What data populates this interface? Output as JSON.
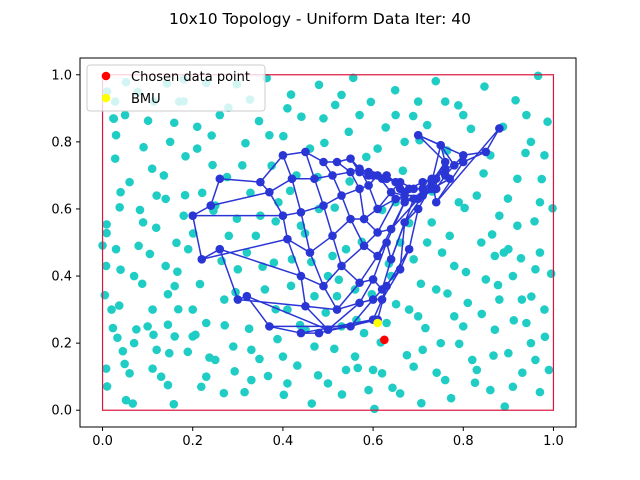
{
  "chart_data": {
    "type": "scatter",
    "title": "10x10 Topology - Uniform Data Iter: 40",
    "xlabel": "",
    "ylabel": "",
    "xlim": [
      -0.05,
      1.05
    ],
    "ylim": [
      -0.05,
      1.05
    ],
    "xticks": [
      "0.0",
      "0.2",
      "0.4",
      "0.6",
      "0.8",
      "1.0"
    ],
    "yticks": [
      "0.0",
      "0.2",
      "0.4",
      "0.6",
      "0.8",
      "1.0"
    ],
    "grid": false,
    "legend_placement": "top-left",
    "colors": {
      "data": "#20cdc5",
      "nodes": "#2a35d5",
      "edges": "#2a35d5",
      "chosen": "#ff0000",
      "bmu": "#ffff00",
      "border": "#dc143c"
    },
    "boundary": {
      "x": [
        0,
        1
      ],
      "y": [
        0,
        1
      ]
    },
    "legend": [
      {
        "name": "Chosen data point",
        "color": "#ff0000"
      },
      {
        "name": "BMU",
        "color": "#ffff00"
      }
    ],
    "chosen_point": {
      "x": 0.625,
      "y": 0.21
    },
    "bmu": {
      "x": 0.61,
      "y": 0.26
    },
    "nodes": [
      [
        [
          0.62,
          0.69
        ],
        [
          0.63,
          0.7
        ],
        [
          0.65,
          0.68
        ],
        [
          0.66,
          0.66
        ],
        [
          0.67,
          0.65
        ],
        [
          0.68,
          0.66
        ],
        [
          0.71,
          0.68
        ],
        [
          0.73,
          0.69
        ],
        [
          0.74,
          0.62
        ],
        [
          0.88,
          0.84
        ]
      ],
      [
        [
          0.59,
          0.7
        ],
        [
          0.6,
          0.7
        ],
        [
          0.63,
          0.69
        ],
        [
          0.66,
          0.68
        ],
        [
          0.69,
          0.66
        ],
        [
          0.71,
          0.66
        ],
        [
          0.74,
          0.69
        ],
        [
          0.76,
          0.72
        ],
        [
          0.8,
          0.74
        ],
        [
          0.85,
          0.77
        ]
      ],
      [
        [
          0.57,
          0.71
        ],
        [
          0.59,
          0.71
        ],
        [
          0.61,
          0.7
        ],
        [
          0.64,
          0.65
        ],
        [
          0.67,
          0.64
        ],
        [
          0.71,
          0.64
        ],
        [
          0.74,
          0.66
        ],
        [
          0.76,
          0.7
        ],
        [
          0.78,
          0.73
        ],
        [
          0.8,
          0.76
        ]
      ],
      [
        [
          0.55,
          0.75
        ],
        [
          0.57,
          0.72
        ],
        [
          0.59,
          0.67
        ],
        [
          0.61,
          0.6
        ],
        [
          0.65,
          0.63
        ],
        [
          0.7,
          0.63
        ],
        [
          0.73,
          0.66
        ],
        [
          0.77,
          0.69
        ],
        [
          0.75,
          0.79
        ],
        [
          0.7,
          0.82
        ]
      ],
      [
        [
          0.52,
          0.74
        ],
        [
          0.55,
          0.71
        ],
        [
          0.57,
          0.66
        ],
        [
          0.58,
          0.57
        ],
        [
          0.61,
          0.53
        ],
        [
          0.64,
          0.54
        ],
        [
          0.67,
          0.62
        ],
        [
          0.69,
          0.63
        ],
        [
          0.73,
          0.68
        ],
        [
          0.76,
          0.74
        ]
      ],
      [
        [
          0.49,
          0.74
        ],
        [
          0.51,
          0.7
        ],
        [
          0.53,
          0.64
        ],
        [
          0.55,
          0.57
        ],
        [
          0.58,
          0.49
        ],
        [
          0.61,
          0.46
        ],
        [
          0.63,
          0.5
        ],
        [
          0.64,
          0.45
        ],
        [
          0.67,
          0.56
        ],
        [
          0.7,
          0.6
        ]
      ],
      [
        [
          0.45,
          0.77
        ],
        [
          0.47,
          0.69
        ],
        [
          0.49,
          0.61
        ],
        [
          0.51,
          0.52
        ],
        [
          0.53,
          0.43
        ],
        [
          0.57,
          0.38
        ],
        [
          0.6,
          0.39
        ],
        [
          0.62,
          0.36
        ],
        [
          0.66,
          0.42
        ],
        [
          0.68,
          0.48
        ]
      ],
      [
        [
          0.4,
          0.76
        ],
        [
          0.42,
          0.69
        ],
        [
          0.44,
          0.59
        ],
        [
          0.46,
          0.47
        ],
        [
          0.49,
          0.37
        ],
        [
          0.52,
          0.3
        ],
        [
          0.57,
          0.32
        ],
        [
          0.6,
          0.33
        ],
        [
          0.62,
          0.33
        ],
        [
          0.63,
          0.37
        ]
      ],
      [
        [
          0.35,
          0.68
        ],
        [
          0.37,
          0.65
        ],
        [
          0.4,
          0.58
        ],
        [
          0.41,
          0.51
        ],
        [
          0.44,
          0.4
        ],
        [
          0.45,
          0.31
        ],
        [
          0.5,
          0.24
        ],
        [
          0.55,
          0.25
        ],
        [
          0.6,
          0.27
        ],
        [
          0.61,
          0.27
        ]
      ],
      [
        [
          0.26,
          0.69
        ],
        [
          0.24,
          0.61
        ],
        [
          0.2,
          0.58
        ],
        [
          0.22,
          0.45
        ],
        [
          0.26,
          0.48
        ],
        [
          0.3,
          0.33
        ],
        [
          0.32,
          0.34
        ],
        [
          0.37,
          0.25
        ],
        [
          0.44,
          0.23
        ],
        [
          0.48,
          0.23
        ]
      ]
    ],
    "data_points": [
      [
        0.0,
        0.491
      ],
      [
        0.009,
        0.554
      ],
      [
        0.01,
        0.071
      ],
      [
        0.008,
        0.43
      ],
      [
        0.008,
        0.124
      ],
      [
        0.005,
        0.343
      ],
      [
        0.024,
        0.87
      ],
      [
        0.028,
        0.75
      ],
      [
        0.009,
        0.528
      ],
      [
        0.028,
        0.92
      ],
      [
        0.025,
        0.869
      ],
      [
        0.033,
        0.216
      ],
      [
        0.049,
        0.138
      ],
      [
        0.052,
        0.978
      ],
      [
        0.04,
        0.419
      ],
      [
        0.038,
        0.605
      ],
      [
        0.023,
        0.245
      ],
      [
        0.037,
        0.312
      ],
      [
        0.045,
        0.176
      ],
      [
        0.052,
        0.03
      ],
      [
        0.075,
        0.241
      ],
      [
        0.067,
        0.02
      ],
      [
        0.091,
        0.784
      ],
      [
        0.078,
        0.949
      ],
      [
        0.101,
        0.863
      ],
      [
        0.083,
        0.597
      ],
      [
        0.088,
        0.377
      ],
      [
        0.111,
        0.3
      ],
      [
        0.111,
        0.124
      ],
      [
        0.105,
        0.466
      ],
      [
        0.114,
        0.92
      ],
      [
        0.143,
        0.974
      ],
      [
        0.136,
        0.7
      ],
      [
        0.113,
        0.225
      ],
      [
        0.14,
        0.63
      ],
      [
        0.145,
        0.255
      ],
      [
        0.145,
        0.075
      ],
      [
        0.119,
        0.544
      ],
      [
        0.145,
        0.346
      ],
      [
        0.148,
        0.17
      ],
      [
        0.159,
        0.857
      ],
      [
        0.166,
        0.413
      ],
      [
        0.158,
        0.018
      ],
      [
        0.18,
        0.986
      ],
      [
        0.168,
        0.301
      ],
      [
        0.184,
        0.757
      ],
      [
        0.183,
        0.641
      ],
      [
        0.189,
        0.174
      ],
      [
        0.164,
        0.499
      ],
      [
        0.18,
        0.921
      ],
      [
        0.21,
        0.845
      ],
      [
        0.206,
        0.225
      ],
      [
        0.219,
        0.07
      ],
      [
        0.201,
        0.527
      ],
      [
        0.216,
        0.376
      ],
      [
        0.221,
        0.648
      ],
      [
        0.23,
        0.976
      ],
      [
        0.242,
        0.819
      ],
      [
        0.244,
        0.731
      ],
      [
        0.237,
        0.157
      ],
      [
        0.246,
        0.595
      ],
      [
        0.269,
        0.051
      ],
      [
        0.271,
        0.253
      ],
      [
        0.279,
        0.902
      ],
      [
        0.264,
        0.445
      ],
      [
        0.276,
        0.695
      ],
      [
        0.298,
        0.972
      ],
      [
        0.293,
        0.116
      ],
      [
        0.295,
        0.352
      ],
      [
        0.298,
        0.571
      ],
      [
        0.317,
        0.796
      ],
      [
        0.325,
        0.243
      ],
      [
        0.327,
        0.926
      ],
      [
        0.315,
        0.054
      ],
      [
        0.328,
        0.648
      ],
      [
        0.348,
        0.153
      ],
      [
        0.355,
        0.428
      ],
      [
        0.347,
        0.862
      ],
      [
        0.364,
        0.99
      ],
      [
        0.375,
        0.729
      ],
      [
        0.367,
        0.102
      ],
      [
        0.384,
        0.563
      ],
      [
        0.384,
        0.301
      ],
      [
        0.388,
        0.212
      ],
      [
        0.401,
        0.817
      ],
      [
        0.402,
        0.046
      ],
      [
        0.418,
        0.941
      ],
      [
        0.418,
        0.371
      ],
      [
        0.416,
        0.654
      ],
      [
        0.432,
        0.133
      ],
      [
        0.438,
        0.254
      ],
      [
        0.441,
        0.875
      ],
      [
        0.449,
        0.527
      ],
      [
        0.464,
        0.02
      ],
      [
        0.463,
        0.442
      ],
      [
        0.48,
        0.97
      ],
      [
        0.477,
        0.695
      ],
      [
        0.478,
        0.104
      ],
      [
        0.495,
        0.291
      ],
      [
        0.492,
        0.797
      ],
      [
        0.514,
        0.183
      ],
      [
        0.515,
        0.604
      ],
      [
        0.516,
        0.91
      ],
      [
        0.524,
        0.389
      ],
      [
        0.531,
        0.047
      ],
      [
        0.548,
        0.682
      ],
      [
        0.546,
        0.83
      ],
      [
        0.563,
        0.269
      ],
      [
        0.556,
        0.991
      ],
      [
        0.566,
        0.126
      ],
      [
        0.575,
        0.502
      ],
      [
        0.585,
        0.755
      ],
      [
        0.597,
        0.346
      ],
      [
        0.595,
        0.919
      ],
      [
        0.603,
        0.004
      ],
      [
        0.62,
        0.597
      ],
      [
        0.617,
        0.202
      ],
      [
        0.628,
        0.843
      ],
      [
        0.643,
        0.067
      ],
      [
        0.635,
        0.437
      ],
      [
        0.649,
        0.954
      ],
      [
        0.651,
        0.316
      ],
      [
        0.666,
        0.714
      ],
      [
        0.675,
        0.164
      ],
      [
        0.68,
        0.558
      ],
      [
        0.689,
        0.877
      ],
      [
        0.707,
        0.021
      ],
      [
        0.706,
        0.377
      ],
      [
        0.703,
        0.805
      ],
      [
        0.716,
        0.245
      ],
      [
        0.731,
        0.652
      ],
      [
        0.739,
        0.981
      ],
      [
        0.741,
        0.112
      ],
      [
        0.753,
        0.47
      ],
      [
        0.764,
        0.774
      ],
      [
        0.765,
        0.348
      ],
      [
        0.773,
        0.036
      ],
      [
        0.789,
        0.909
      ],
      [
        0.791,
        0.198
      ],
      [
        0.803,
        0.603
      ],
      [
        0.806,
        0.412
      ],
      [
        0.817,
        0.839
      ],
      [
        0.826,
        0.082
      ],
      [
        0.841,
        0.287
      ],
      [
        0.845,
        0.706
      ],
      [
        0.847,
        0.965
      ],
      [
        0.864,
        0.524
      ],
      [
        0.867,
        0.163
      ],
      [
        0.877,
        0.373
      ],
      [
        0.888,
        0.845
      ],
      [
        0.892,
        0.011
      ],
      [
        0.899,
        0.631
      ],
      [
        0.912,
        0.268
      ],
      [
        0.916,
        0.924
      ],
      [
        0.928,
        0.453
      ],
      [
        0.931,
        0.112
      ],
      [
        0.938,
        0.767
      ],
      [
        0.951,
        0.339
      ],
      [
        0.958,
        0.563
      ],
      [
        0.966,
        0.997
      ],
      [
        0.97,
        0.054
      ],
      [
        0.974,
        0.689
      ],
      [
        0.981,
        0.219
      ],
      [
        0.987,
        0.86
      ],
      [
        0.995,
        0.407
      ],
      [
        0.998,
        0.602
      ],
      [
        0.06,
        0.68
      ],
      [
        0.13,
        0.1
      ],
      [
        0.2,
        0.3
      ],
      [
        0.34,
        0.52
      ],
      [
        0.47,
        0.34
      ],
      [
        0.72,
        0.5
      ],
      [
        0.86,
        0.06
      ],
      [
        0.9,
        0.48
      ],
      [
        0.56,
        0.16
      ],
      [
        0.28,
        0.52
      ],
      [
        0.02,
        0.3
      ],
      [
        0.4,
        0.16
      ],
      [
        0.62,
        0.11
      ],
      [
        0.78,
        0.28
      ],
      [
        0.96,
        0.15
      ],
      [
        0.15,
        0.8
      ],
      [
        0.43,
        0.7
      ],
      [
        0.7,
        0.92
      ],
      [
        0.94,
        0.88
      ],
      [
        0.84,
        0.5
      ],
      [
        0.03,
        0.82
      ],
      [
        0.09,
        0.56
      ],
      [
        0.07,
        0.4
      ],
      [
        0.12,
        0.18
      ],
      [
        0.16,
        0.37
      ],
      [
        0.19,
        0.48
      ],
      [
        0.23,
        0.26
      ],
      [
        0.25,
        0.15
      ],
      [
        0.3,
        0.42
      ],
      [
        0.33,
        0.09
      ],
      [
        0.36,
        0.36
      ],
      [
        0.39,
        0.62
      ],
      [
        0.42,
        0.45
      ],
      [
        0.45,
        0.24
      ],
      [
        0.48,
        0.6
      ],
      [
        0.5,
        0.08
      ],
      [
        0.52,
        0.34
      ],
      [
        0.54,
        0.48
      ],
      [
        0.58,
        0.23
      ],
      [
        0.6,
        0.12
      ],
      [
        0.64,
        0.4
      ],
      [
        0.66,
        0.05
      ],
      [
        0.68,
        0.3
      ],
      [
        0.69,
        0.45
      ],
      [
        0.71,
        0.18
      ],
      [
        0.74,
        0.36
      ],
      [
        0.76,
        0.09
      ],
      [
        0.78,
        0.43
      ],
      [
        0.8,
        0.25
      ],
      [
        0.82,
        0.15
      ],
      [
        0.85,
        0.39
      ],
      [
        0.87,
        0.24
      ],
      [
        0.89,
        0.47
      ],
      [
        0.91,
        0.07
      ],
      [
        0.93,
        0.33
      ],
      [
        0.95,
        0.2
      ],
      [
        0.97,
        0.47
      ],
      [
        0.99,
        0.12
      ],
      [
        0.01,
        0.95
      ],
      [
        0.05,
        0.88
      ],
      [
        0.11,
        0.72
      ],
      [
        0.17,
        0.92
      ],
      [
        0.21,
        0.78
      ],
      [
        0.26,
        0.88
      ],
      [
        0.31,
        0.73
      ],
      [
        0.37,
        0.82
      ],
      [
        0.41,
        0.9
      ],
      [
        0.46,
        0.78
      ],
      [
        0.49,
        0.87
      ],
      [
        0.53,
        0.94
      ],
      [
        0.57,
        0.88
      ],
      [
        0.61,
        0.78
      ],
      [
        0.65,
        0.88
      ],
      [
        0.67,
        0.8
      ],
      [
        0.72,
        0.85
      ],
      [
        0.76,
        0.92
      ],
      [
        0.8,
        0.88
      ],
      [
        0.83,
        0.64
      ],
      [
        0.86,
        0.76
      ],
      [
        0.88,
        0.58
      ],
      [
        0.92,
        0.69
      ],
      [
        0.95,
        0.8
      ],
      [
        0.98,
        0.76
      ],
      [
        0.04,
        0.65
      ],
      [
        0.08,
        0.49
      ],
      [
        0.1,
        0.25
      ],
      [
        0.14,
        0.43
      ],
      [
        0.18,
        0.58
      ],
      [
        0.2,
        0.22
      ],
      [
        0.23,
        0.1
      ],
      [
        0.27,
        0.33
      ],
      [
        0.29,
        0.19
      ],
      [
        0.32,
        0.47
      ],
      [
        0.35,
        0.58
      ],
      [
        0.38,
        0.44
      ],
      [
        0.41,
        0.3
      ],
      [
        0.44,
        0.55
      ],
      [
        0.47,
        0.19
      ],
      [
        0.51,
        0.46
      ],
      [
        0.53,
        0.25
      ],
      [
        0.56,
        0.36
      ],
      [
        0.59,
        0.06
      ],
      [
        0.63,
        0.26
      ],
      [
        0.66,
        0.5
      ],
      [
        0.7,
        0.28
      ],
      [
        0.73,
        0.56
      ],
      [
        0.75,
        0.2
      ],
      [
        0.77,
        0.52
      ],
      [
        0.81,
        0.32
      ],
      [
        0.83,
        0.12
      ],
      [
        0.87,
        0.46
      ],
      [
        0.9,
        0.17
      ],
      [
        0.92,
        0.55
      ],
      [
        0.94,
        0.26
      ],
      [
        0.96,
        0.42
      ],
      [
        0.98,
        0.3
      ],
      [
        0.06,
        0.11
      ],
      [
        0.03,
        0.48
      ],
      [
        0.07,
        0.2
      ],
      [
        0.12,
        0.64
      ],
      [
        0.16,
        0.22
      ],
      [
        0.25,
        0.61
      ],
      [
        0.33,
        0.18
      ],
      [
        0.41,
        0.08
      ],
      [
        0.5,
        0.4
      ],
      [
        0.54,
        0.12
      ],
      [
        0.65,
        0.62
      ],
      [
        0.69,
        0.13
      ],
      [
        0.79,
        0.62
      ],
      [
        0.88,
        0.33
      ],
      [
        0.91,
        0.4
      ],
      [
        0.97,
        0.62
      ]
    ]
  }
}
